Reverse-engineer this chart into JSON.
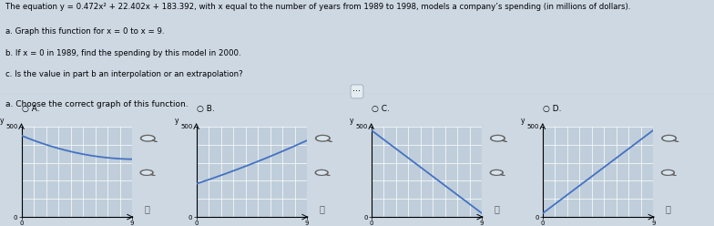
{
  "title_line": "The equation y = 0.472x² + 22.402x + 183.392, with x equal to the number of years from 1989 to 1998, models a company’s spending (in millions of dollars).",
  "line1": "a. Graph this function for x = 0 to x = 9.",
  "line2": "b. If x = 0 in 1989, find the spending by this model in 2000.",
  "line3": "c. Is the value in part b an interpolation or an extrapolation?",
  "question": "a. Choose the correct graph of this function.",
  "options": [
    "A.",
    "B.",
    "C.",
    "D."
  ],
  "xlim": [
    0,
    9
  ],
  "ylim": [
    0,
    500
  ],
  "bg_color": "#cdd8e3",
  "graph_bg": "#bfceda",
  "grid_color": "#d4dfe8",
  "curve_color": "#4472c4",
  "fig_width": 7.84,
  "fig_height": 2.48,
  "dpi": 100
}
